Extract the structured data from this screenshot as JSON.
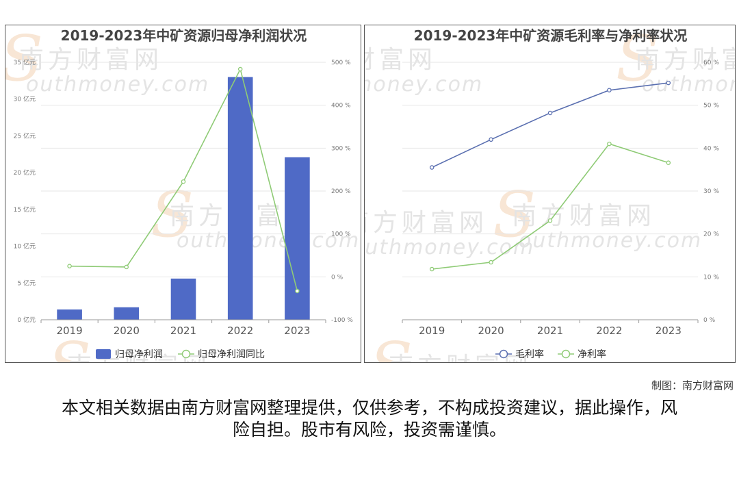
{
  "chart_data": [
    {
      "type": "bar",
      "title": "2019-2023年中矿资源归母净利润状况",
      "categories": [
        "2019",
        "2020",
        "2021",
        "2022",
        "2023"
      ],
      "series": [
        {
          "name": "归母净利润",
          "chart": "bar",
          "axis": "left",
          "color": "#4f6ac6",
          "values": [
            1.4,
            1.7,
            5.6,
            33.0,
            22.1
          ]
        },
        {
          "name": "归母净利润同比",
          "chart": "line",
          "axis": "right",
          "color": "#8fcb76",
          "values": [
            25,
            23,
            222,
            484,
            -33
          ]
        }
      ],
      "yleft": {
        "min": 0,
        "max": 35,
        "step": 5,
        "unit": "亿元",
        "ticks": [
          "0 亿元",
          "5 亿元",
          "10 亿元",
          "15 亿元",
          "20 亿元",
          "25 亿元",
          "30 亿元",
          "35 亿元"
        ]
      },
      "yright": {
        "min": -100,
        "max": 500,
        "step": 100,
        "unit": "%",
        "ticks": [
          "-100 %",
          "0 %",
          "100 %",
          "200 %",
          "300 %",
          "400 %",
          "500 %"
        ]
      },
      "grid": true,
      "legend": "bottom"
    },
    {
      "type": "line",
      "title": "2019-2023年中矿资源毛利率与净利率状况",
      "categories": [
        "2019",
        "2020",
        "2021",
        "2022",
        "2023"
      ],
      "series": [
        {
          "name": "毛利率",
          "axis": "right",
          "color": "#5a6fb0",
          "values": [
            35.5,
            42,
            48.2,
            53.5,
            55.2
          ]
        },
        {
          "name": "净利率",
          "axis": "right",
          "color": "#8fcb76",
          "values": [
            11.8,
            13.4,
            23.1,
            41,
            36.6
          ]
        }
      ],
      "yright": {
        "min": 0,
        "max": 60,
        "step": 10,
        "unit": "%",
        "ticks": [
          "0 %",
          "10 %",
          "20 %",
          "30 %",
          "40 %",
          "50 %",
          "60 %"
        ]
      },
      "grid": true,
      "legend": "bottom"
    }
  ],
  "watermark": {
    "cn": "南方财富网",
    "en": "outhmoney.com",
    "letter": "S"
  },
  "credit": "制图：南方财富网",
  "disclaimer": "本文相关数据由南方财富网整理提供，仅供参考，不构成投资建议，据此操作，风险自担。股市有风险，投资需谨慎。"
}
